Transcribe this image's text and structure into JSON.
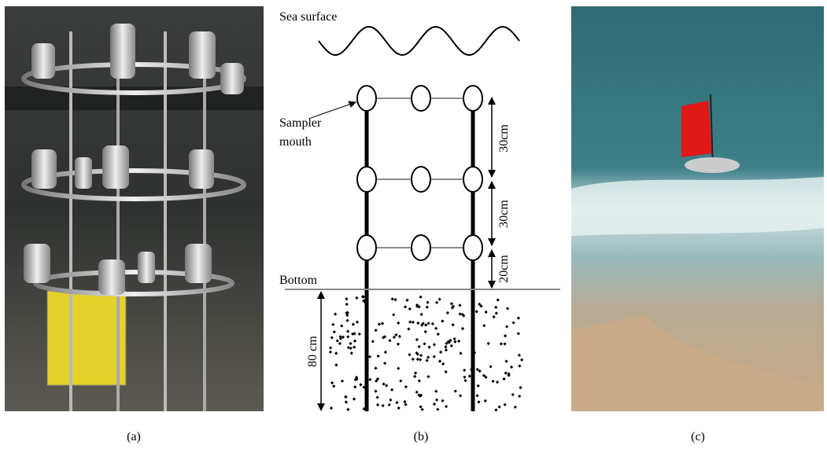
{
  "panels": [
    {
      "label": "(a)"
    },
    {
      "label": "(b)",
      "diagram": {
        "sea_surface": "Sea surface",
        "sampler_mouth": [
          "Sampler",
          "mouth"
        ],
        "bottom": "Bottom",
        "spacings": [
          "30cm",
          "30cm",
          "20cm"
        ],
        "sediment_depth": "80 cm"
      }
    },
    {
      "label": "(c)"
    }
  ]
}
